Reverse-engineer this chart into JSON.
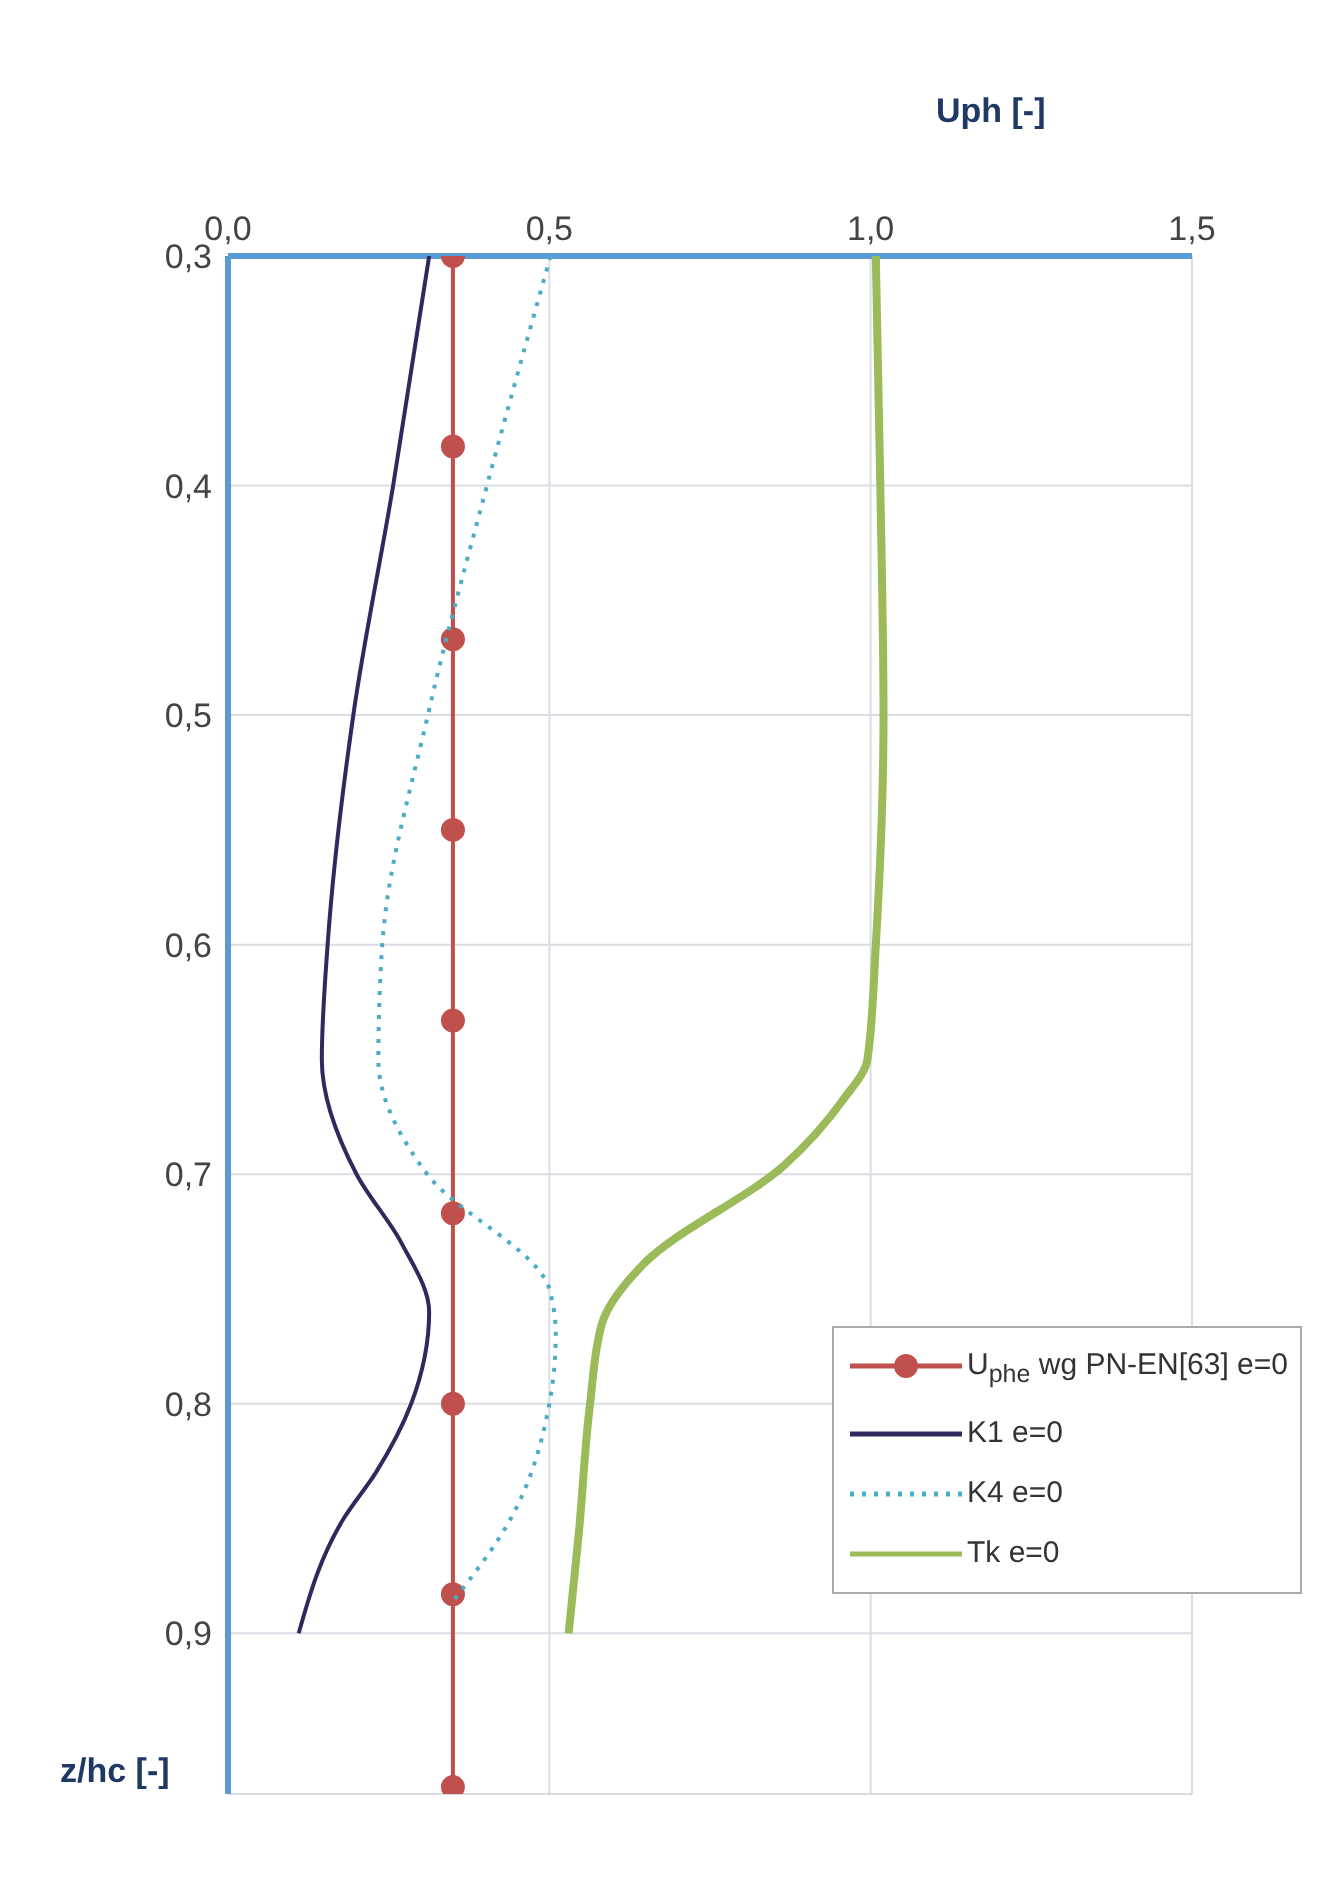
{
  "chart_data": {
    "type": "line",
    "xlabel": "Uph [-]",
    "ylabel": "z/hc [-]",
    "xlim": [
      0,
      1.5
    ],
    "xticks": [
      {
        "value": 0,
        "label": "0,0"
      },
      {
        "value": 0.5,
        "label": "0,5"
      },
      {
        "value": 1,
        "label": "1,0"
      },
      {
        "value": 1.5,
        "label": "1,5"
      }
    ],
    "ylim": [
      0.97,
      0.3
    ],
    "yticks": [
      {
        "value": 0.3,
        "label": "0,3"
      },
      {
        "value": 0.4,
        "label": "0,4"
      },
      {
        "value": 0.5,
        "label": "0,5"
      },
      {
        "value": 0.6,
        "label": "0,6"
      },
      {
        "value": 0.7,
        "label": "0,7"
      },
      {
        "value": 0.8,
        "label": "0,8"
      },
      {
        "value": 0.9,
        "label": "0,9"
      }
    ],
    "grid": true,
    "legend": "bottom right",
    "series": [
      {
        "name": "U$_{phe}$ wg PN-EN[63] e=0",
        "color": "#c0504d",
        "marker": "circle",
        "line_style": "solid",
        "x": [
          0.35,
          0.35,
          0.35,
          0.35,
          0.35,
          0.35,
          0.35,
          0.35,
          0.35
        ],
        "values": [
          0.3,
          0.383,
          0.467,
          0.55,
          0.633,
          0.717,
          0.8,
          0.883,
          0.967
        ]
      },
      {
        "name": "K1 e=0",
        "color": "#2e2a5e",
        "marker": "none",
        "line_style": "solid",
        "x": [
          0.313,
          0.257,
          0.195,
          0.155,
          0.146,
          0.2,
          0.27,
          0.313,
          0.285,
          0.23,
          0.18,
          0.11
        ],
        "values": [
          0.3,
          0.4,
          0.5,
          0.6,
          0.65,
          0.7,
          0.73,
          0.76,
          0.8,
          0.83,
          0.85,
          0.9
        ]
      },
      {
        "name": "K4 e=0",
        "color": "#4bacc6",
        "marker": "none",
        "line_style": "dotted",
        "x": [
          0.502,
          0.403,
          0.311,
          0.24,
          0.234,
          0.31,
          0.5,
          0.51,
          0.5,
          0.44,
          0.35
        ],
        "values": [
          0.3,
          0.4,
          0.5,
          0.6,
          0.65,
          0.7,
          0.75,
          0.77,
          0.8,
          0.85,
          0.886
        ]
      },
      {
        "name": "Tk e=0",
        "color": "#9bbb59",
        "marker": "none",
        "line_style": "solid",
        "x": [
          1.008,
          1.015,
          1.02,
          1.008,
          0.995,
          0.956,
          0.866,
          0.647,
          0.582,
          0.563,
          0.546,
          0.53
        ],
        "values": [
          0.3,
          0.4,
          0.5,
          0.6,
          0.65,
          0.668,
          0.696,
          0.739,
          0.765,
          0.801,
          0.856,
          0.9
        ]
      }
    ]
  }
}
